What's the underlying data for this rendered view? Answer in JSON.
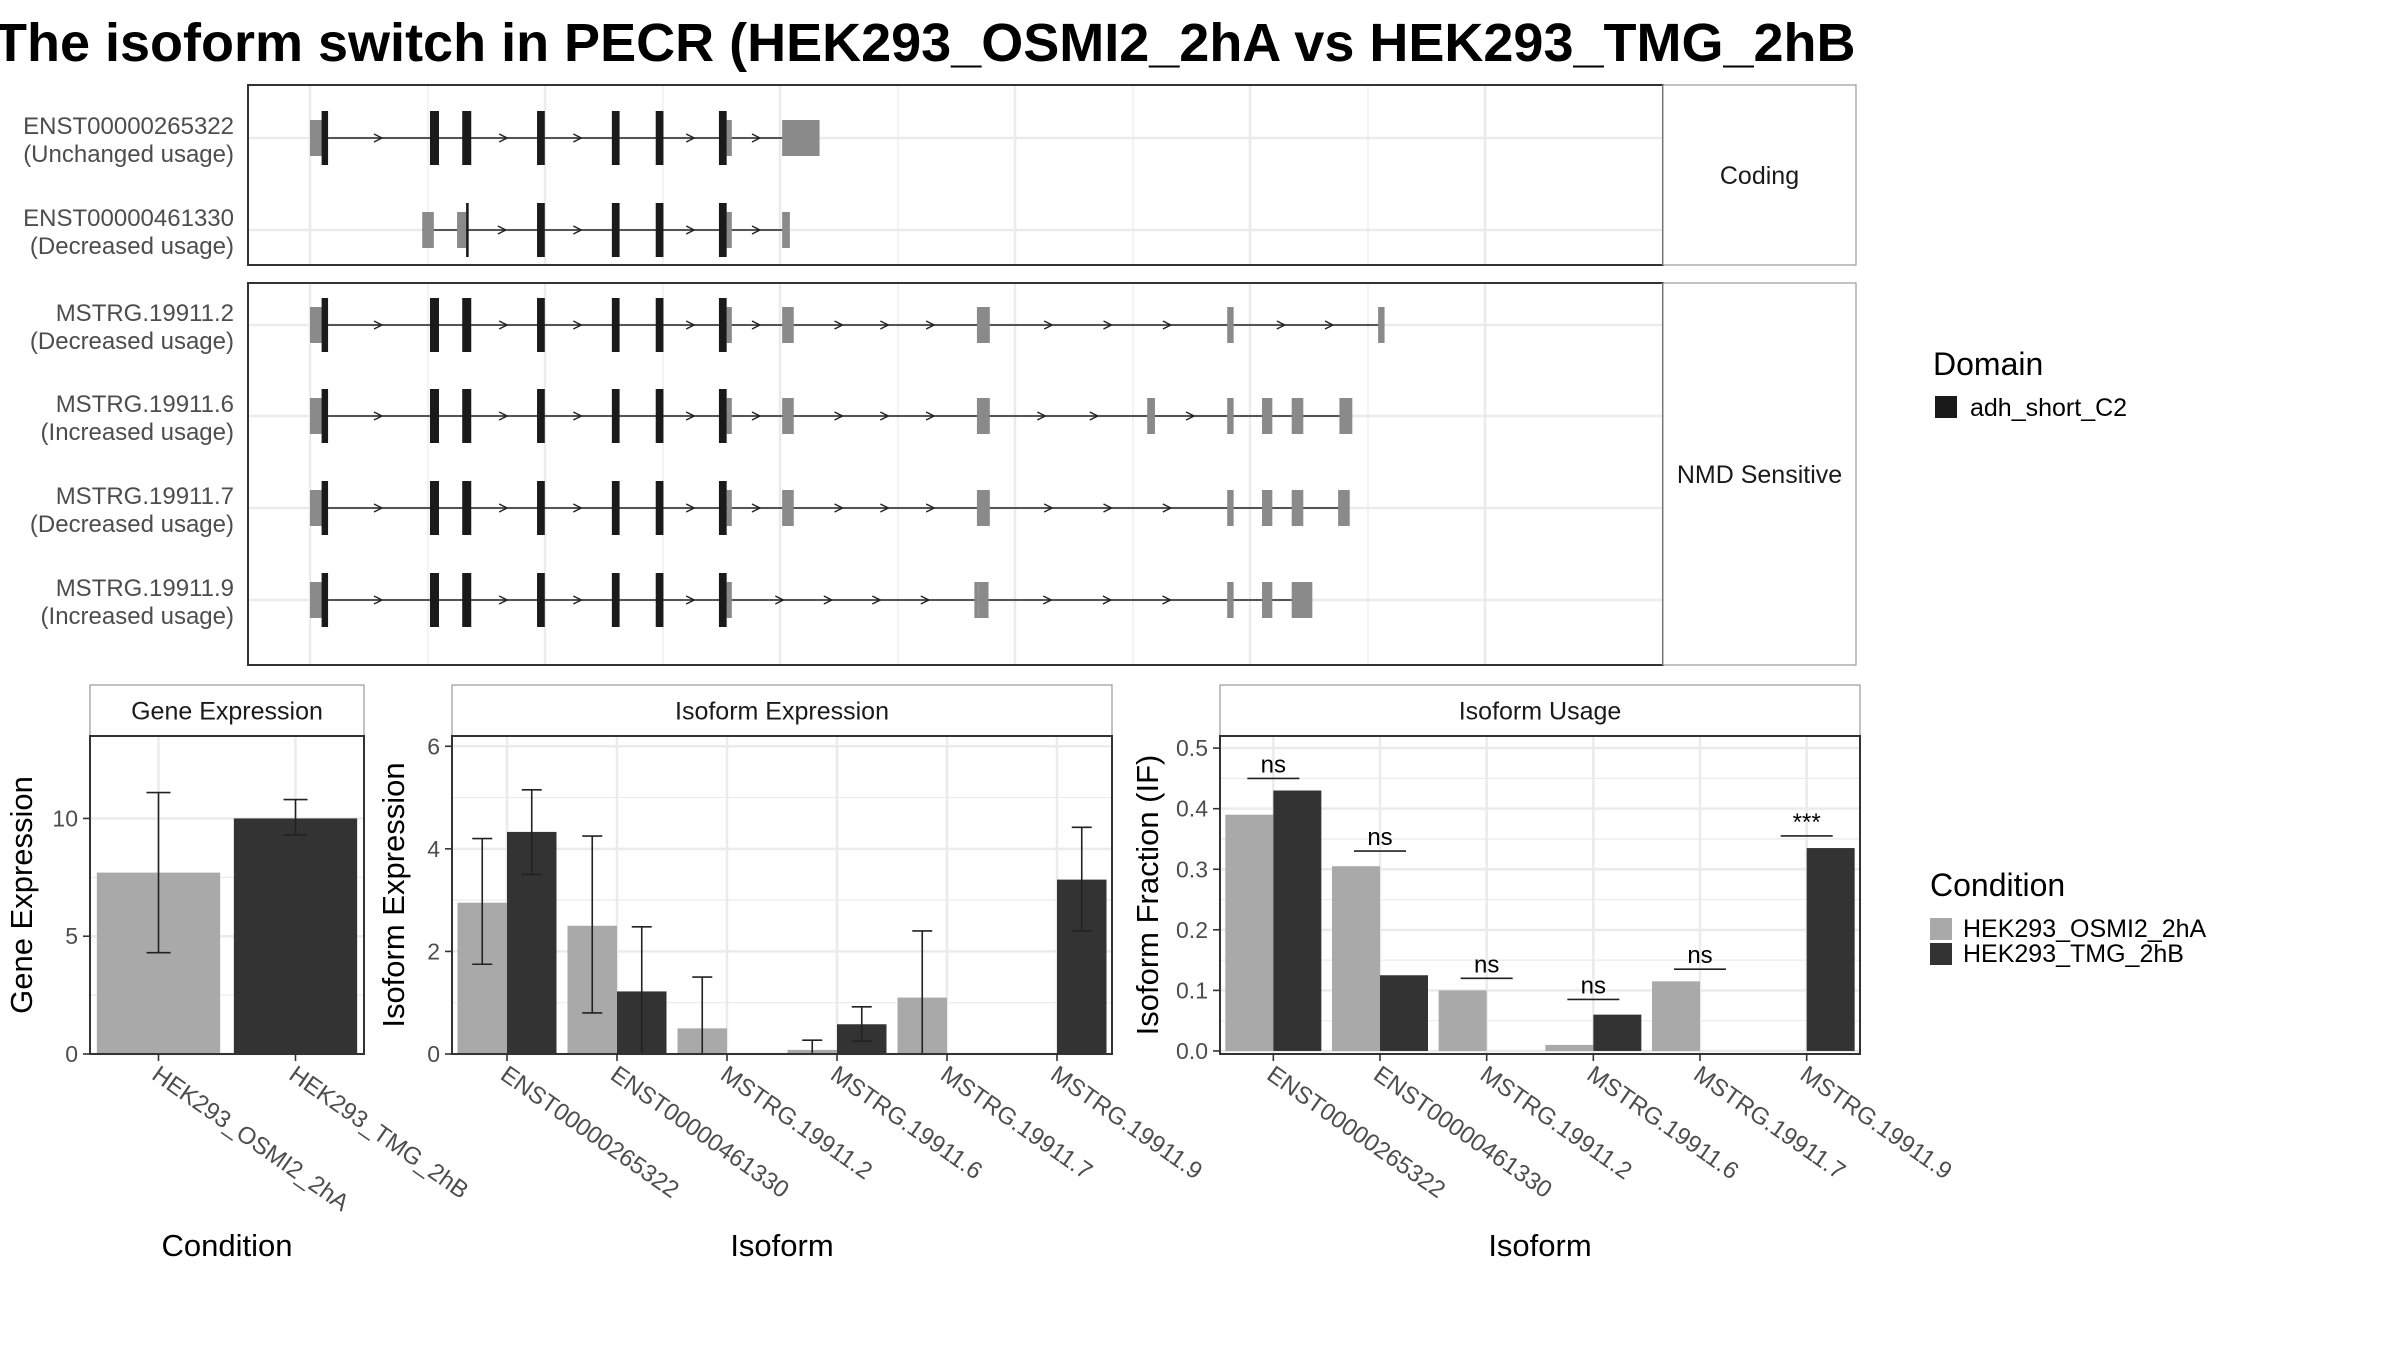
{
  "title": "The isoform switch in PECR (HEK293_OSMI2_2hA vs HEK293_TMG_2hB",
  "colors": {
    "condA": "#a9a9a9",
    "condB": "#333333",
    "exon_utr": "#8a8a8a",
    "domain": "#1a1a1a",
    "grid": "#ebebeb",
    "panel_border": "#333333",
    "strip_border": "#999999"
  },
  "chart_data": [
    {
      "type": "transcript_structure",
      "panel_name": "isoform-structure-plot",
      "x_range": [
        0,
        1000
      ],
      "facets": [
        {
          "label": "Coding",
          "isoforms": [
            {
              "id": "ENST00000265322",
              "usage": "(Unchanged usage)",
              "span": [
                0,
                390
              ],
              "exons": [
                [
                  0,
                  10,
                  "utr"
                ],
                [
                  9,
                  14,
                  "domain"
                ],
                [
                  93,
                  100,
                  "domain"
                ],
                [
                  118,
                  125,
                  "domain"
                ],
                [
                  176,
                  182,
                  "domain"
                ],
                [
                  234,
                  240,
                  "domain"
                ],
                [
                  268,
                  274,
                  "domain"
                ],
                [
                  317,
                  323,
                  "domain"
                ],
                [
                  323,
                  327,
                  "utr"
                ],
                [
                  366,
                  395,
                  "utr"
                ]
              ]
            },
            {
              "id": "ENST00000461330",
              "usage": "(Decreased usage)",
              "span": [
                87,
                370
              ],
              "exons": [
                [
                  87,
                  96,
                  "utr"
                ],
                [
                  114,
                  121,
                  "utr"
                ],
                [
                  121,
                  123,
                  "domain"
                ],
                [
                  176,
                  182,
                  "domain"
                ],
                [
                  234,
                  240,
                  "domain"
                ],
                [
                  268,
                  274,
                  "domain"
                ],
                [
                  317,
                  323,
                  "domain"
                ],
                [
                  323,
                  327,
                  "utr"
                ],
                [
                  366,
                  372,
                  "utr"
                ]
              ]
            }
          ]
        },
        {
          "label": "NMD Sensitive",
          "isoforms": [
            {
              "id": "MSTRG.19911.2",
              "usage": "(Decreased usage)",
              "span": [
                0,
                830
              ],
              "exons": [
                [
                  0,
                  10,
                  "utr"
                ],
                [
                  9,
                  14,
                  "domain"
                ],
                [
                  93,
                  100,
                  "domain"
                ],
                [
                  118,
                  125,
                  "domain"
                ],
                [
                  176,
                  182,
                  "domain"
                ],
                [
                  234,
                  240,
                  "domain"
                ],
                [
                  268,
                  274,
                  "domain"
                ],
                [
                  317,
                  323,
                  "domain"
                ],
                [
                  323,
                  327,
                  "utr"
                ],
                [
                  366,
                  375,
                  "utr"
                ],
                [
                  517,
                  527,
                  "utr"
                ],
                [
                  711,
                  716,
                  "utr"
                ],
                [
                  828,
                  833,
                  "utr"
                ]
              ]
            },
            {
              "id": "MSTRG.19911.6",
              "usage": "(Increased usage)",
              "span": [
                0,
                800
              ],
              "exons": [
                [
                  0,
                  10,
                  "utr"
                ],
                [
                  9,
                  14,
                  "domain"
                ],
                [
                  93,
                  100,
                  "domain"
                ],
                [
                  118,
                  125,
                  "domain"
                ],
                [
                  176,
                  182,
                  "domain"
                ],
                [
                  234,
                  240,
                  "domain"
                ],
                [
                  268,
                  274,
                  "domain"
                ],
                [
                  317,
                  323,
                  "domain"
                ],
                [
                  323,
                  327,
                  "utr"
                ],
                [
                  366,
                  375,
                  "utr"
                ],
                [
                  517,
                  527,
                  "utr"
                ],
                [
                  649,
                  655,
                  "utr"
                ],
                [
                  711,
                  716,
                  "utr"
                ],
                [
                  738,
                  746,
                  "utr"
                ],
                [
                  761,
                  770,
                  "utr"
                ],
                [
                  798,
                  808,
                  "utr"
                ]
              ]
            },
            {
              "id": "MSTRG.19911.7",
              "usage": "(Decreased usage)",
              "span": [
                0,
                800
              ],
              "exons": [
                [
                  0,
                  10,
                  "utr"
                ],
                [
                  9,
                  14,
                  "domain"
                ],
                [
                  93,
                  100,
                  "domain"
                ],
                [
                  118,
                  125,
                  "domain"
                ],
                [
                  176,
                  182,
                  "domain"
                ],
                [
                  234,
                  240,
                  "domain"
                ],
                [
                  268,
                  274,
                  "domain"
                ],
                [
                  317,
                  323,
                  "domain"
                ],
                [
                  323,
                  327,
                  "utr"
                ],
                [
                  366,
                  375,
                  "utr"
                ],
                [
                  517,
                  527,
                  "utr"
                ],
                [
                  711,
                  716,
                  "utr"
                ],
                [
                  738,
                  746,
                  "utr"
                ],
                [
                  761,
                  770,
                  "utr"
                ],
                [
                  797,
                  806,
                  "utr"
                ]
              ]
            },
            {
              "id": "MSTRG.19911.9",
              "usage": "(Increased usage)",
              "span": [
                0,
                770
              ],
              "exons": [
                [
                  0,
                  10,
                  "utr"
                ],
                [
                  9,
                  14,
                  "domain"
                ],
                [
                  93,
                  100,
                  "domain"
                ],
                [
                  118,
                  125,
                  "domain"
                ],
                [
                  176,
                  182,
                  "domain"
                ],
                [
                  234,
                  240,
                  "domain"
                ],
                [
                  268,
                  274,
                  "domain"
                ],
                [
                  317,
                  323,
                  "domain"
                ],
                [
                  323,
                  327,
                  "utr"
                ],
                [
                  515,
                  518,
                  "utr"
                ],
                [
                  518,
                  526,
                  "utr"
                ],
                [
                  711,
                  716,
                  "utr"
                ],
                [
                  738,
                  746,
                  "utr"
                ],
                [
                  761,
                  777,
                  "utr"
                ]
              ]
            }
          ]
        }
      ],
      "legend": {
        "title": "Domain",
        "items": [
          "adh_short_C2"
        ]
      }
    },
    {
      "type": "bar",
      "strip": "Gene Expression",
      "xlabel": "Condition",
      "ylabel": "Gene Expression",
      "ylim": [
        0,
        13.5
      ],
      "yticks": [
        0,
        5,
        10
      ],
      "categories": [
        "HEK293_OSMI2_2hA",
        "HEK293_TMG_2hB"
      ],
      "values": [
        7.7,
        10.0
      ],
      "errors": [
        [
          4.3,
          11.1
        ],
        [
          9.3,
          10.8
        ]
      ],
      "fills": [
        "condA",
        "condB"
      ]
    },
    {
      "type": "bar",
      "strip": "Isoform Expression",
      "xlabel": "Isoform",
      "ylabel": "Isoform Expression",
      "ylim": [
        0,
        6.2
      ],
      "yticks": [
        0,
        2,
        4,
        6
      ],
      "categories": [
        "ENST00000265322",
        "ENST00000461330",
        "MSTRG.19911.2",
        "MSTRG.19911.6",
        "MSTRG.19911.7",
        "MSTRG.19911.9"
      ],
      "series": [
        {
          "name": "HEK293_OSMI2_2hA",
          "values": [
            2.95,
            2.5,
            0.5,
            0.08,
            1.1,
            0.0
          ],
          "errors": [
            [
              1.75,
              4.2
            ],
            [
              0.8,
              4.25
            ],
            [
              0.0,
              1.5
            ],
            [
              0.0,
              0.27
            ],
            [
              0.0,
              2.4
            ],
            [
              0.0,
              0.0
            ]
          ]
        },
        {
          "name": "HEK293_TMG_2hB",
          "values": [
            4.33,
            1.22,
            0.0,
            0.58,
            0.0,
            3.4
          ],
          "errors": [
            [
              3.5,
              5.15
            ],
            [
              0.0,
              2.48
            ],
            [
              0.0,
              0.0
            ],
            [
              0.25,
              0.92
            ],
            [
              0.0,
              0.0
            ],
            [
              2.4,
              4.42
            ]
          ]
        }
      ]
    },
    {
      "type": "bar",
      "strip": "Isoform Usage",
      "xlabel": "Isoform",
      "ylabel": "Isoform Fraction (IF)",
      "ylim": [
        -0.005,
        0.52
      ],
      "yticks": [
        0.0,
        0.1,
        0.2,
        0.3,
        0.4,
        0.5
      ],
      "ytick_labels": [
        "0.0",
        "0.1",
        "0.2",
        "0.3",
        "0.4",
        "0.5"
      ],
      "categories": [
        "ENST00000265322",
        "ENST00000461330",
        "MSTRG.19911.2",
        "MSTRG.19911.6",
        "MSTRG.19911.7",
        "MSTRG.19911.9"
      ],
      "series": [
        {
          "name": "HEK293_OSMI2_2hA",
          "values": [
            0.39,
            0.305,
            0.1,
            0.01,
            0.115,
            0.0
          ]
        },
        {
          "name": "HEK293_TMG_2hB",
          "values": [
            0.43,
            0.125,
            0.0,
            0.06,
            0.0,
            0.335
          ]
        }
      ],
      "significance": [
        {
          "label": "ns",
          "value": 0.45
        },
        {
          "label": "ns",
          "value": 0.33
        },
        {
          "label": "ns",
          "value": 0.12
        },
        {
          "label": "ns",
          "value": 0.085
        },
        {
          "label": "ns",
          "value": 0.135
        },
        {
          "label": "***",
          "value": 0.355
        }
      ],
      "legend": {
        "title": "Condition",
        "items": [
          "HEK293_OSMI2_2hA",
          "HEK293_TMG_2hB"
        ]
      }
    }
  ]
}
